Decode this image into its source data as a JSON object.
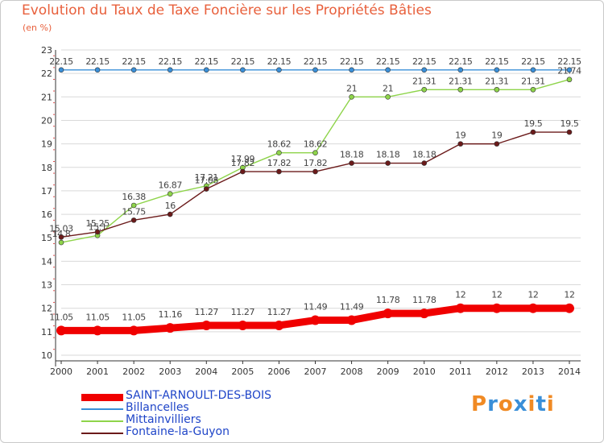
{
  "title": "Evolution du Taux de Taxe Foncière sur les Propriétés Bâties",
  "subtitle": "(en %)",
  "colors": {
    "title": "#e8603c",
    "axis_text": "#333333",
    "grid": "#d9d9d9",
    "axis": "#333333",
    "tick_minor": "#e05050",
    "legend_text": "#1f45c8"
  },
  "logo": {
    "text": "Proxiti",
    "letters": [
      "P",
      "r",
      "o",
      "x",
      "i",
      "t",
      "i"
    ],
    "letter_colors": [
      "#f08a24",
      "#3a8fd8",
      "#f08a24",
      "#3a8fd8",
      "#f08a24",
      "#3a8fd8",
      "#f08a24"
    ]
  },
  "chart_data": {
    "type": "line",
    "x": [
      "2000",
      "2001",
      "2002",
      "2003",
      "2004",
      "2005",
      "2006",
      "2007",
      "2008",
      "2009",
      "2010",
      "2011",
      "2012",
      "2013",
      "2014"
    ],
    "ylim": [
      10,
      23
    ],
    "yticks": [
      "10",
      "11",
      "12",
      "13",
      "14",
      "15",
      "16",
      "17",
      "18",
      "19",
      "20",
      "21",
      "22",
      "23"
    ],
    "grid": "horizontal",
    "series": [
      {
        "name": "SAINT-ARNOULT-DES-BOIS",
        "color": "#f00000",
        "emphasis": true,
        "values": [
          11.05,
          11.05,
          11.05,
          11.16,
          11.27,
          11.27,
          11.27,
          11.49,
          11.49,
          11.78,
          11.78,
          12,
          12,
          12,
          12
        ],
        "labels": [
          "11.05",
          "11.05",
          "11.05",
          "11.16",
          "11.27",
          "11.27",
          "11.27",
          "11.49",
          "11.49",
          "11.78",
          "11.78",
          "12",
          "12",
          "12",
          "12"
        ]
      },
      {
        "name": "Billancelles",
        "color": "#3a8fd8",
        "values": [
          22.15,
          22.15,
          22.15,
          22.15,
          22.15,
          22.15,
          22.15,
          22.15,
          22.15,
          22.15,
          22.15,
          22.15,
          22.15,
          22.15,
          22.15
        ],
        "labels": [
          "22.15",
          "22.15",
          "22.15",
          "22.15",
          "22.15",
          "22.15",
          "22.15",
          "22.15",
          "22.15",
          "22.15",
          "22.15",
          "22.15",
          "22.15",
          "22.15",
          "22.15"
        ]
      },
      {
        "name": "Mittainvilliers",
        "color": "#8ed44a",
        "values": [
          14.8,
          15.1,
          16.38,
          16.87,
          17.21,
          17.99,
          18.62,
          18.62,
          21,
          21,
          21.31,
          21.31,
          21.31,
          21.31,
          21.74
        ],
        "labels": [
          "14.8",
          "15.1",
          "16.38",
          "16.87",
          "17.21",
          "17.99",
          "18.62",
          "18.62",
          "21",
          "21",
          "21.31",
          "21.31",
          "21.31",
          "21.31",
          "21.74"
        ]
      },
      {
        "name": "Fontaine-la-Guyon",
        "color": "#6b1a1a",
        "values": [
          15.03,
          15.25,
          15.75,
          16,
          17.08,
          17.82,
          17.82,
          17.82,
          18.18,
          18.18,
          18.18,
          19,
          19,
          19.5,
          19.5
        ],
        "labels": [
          "15.03",
          "15.25",
          "15.75",
          "16",
          "17.08",
          "17.82",
          "17.82",
          "17.82",
          "18.18",
          "18.18",
          "18.18",
          "19",
          "19",
          "19.5",
          "19.5"
        ]
      }
    ]
  }
}
